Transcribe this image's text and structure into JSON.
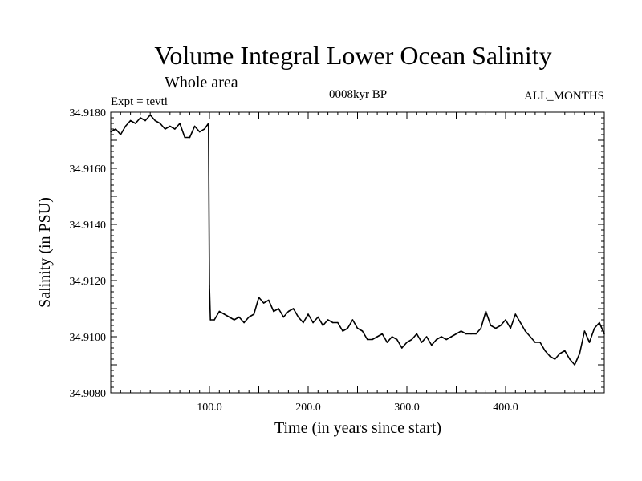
{
  "chart_data": {
    "type": "line",
    "title": "Volume Integral Lower Ocean Salinity",
    "subtitle": "Whole area",
    "annotations": {
      "experiment": "Expt = tevti",
      "period": "0008kyr BP",
      "months": "ALL_MONTHS"
    },
    "xlabel": "Time (in years since start)",
    "ylabel": "Salinity (in PSU)",
    "xlim": [
      0,
      500
    ],
    "ylim": [
      34.908,
      34.918
    ],
    "xticks_labeled": [
      "100.0",
      "200.0",
      "300.0",
      "400.0"
    ],
    "xtick_values": [
      100,
      200,
      300,
      400
    ],
    "yticks_labeled": [
      "34.9080",
      "34.9100",
      "34.9120",
      "34.9140",
      "34.9160",
      "34.9180"
    ],
    "ytick_values": [
      34.908,
      34.91,
      34.912,
      34.914,
      34.916,
      34.918
    ],
    "grid": false,
    "series": [
      {
        "x": [
          0,
          5,
          10,
          15,
          20,
          25,
          30,
          35,
          40,
          45,
          50,
          55,
          60,
          65,
          70,
          75,
          80,
          85,
          90,
          95,
          99,
          100,
          101,
          105,
          110,
          115,
          120,
          125,
          130,
          135,
          140,
          145,
          150,
          155,
          160,
          165,
          170,
          175,
          180,
          185,
          190,
          195,
          200,
          205,
          210,
          215,
          220,
          225,
          230,
          235,
          240,
          245,
          250,
          255,
          260,
          265,
          270,
          275,
          280,
          285,
          290,
          295,
          300,
          305,
          310,
          315,
          320,
          325,
          330,
          335,
          340,
          345,
          350,
          355,
          360,
          365,
          370,
          375,
          380,
          385,
          390,
          395,
          400,
          405,
          410,
          415,
          420,
          425,
          430,
          435,
          440,
          445,
          450,
          455,
          460,
          465,
          470,
          475,
          480,
          485,
          490,
          495,
          500
        ],
        "y": [
          34.9173,
          34.9174,
          34.9172,
          34.9175,
          34.9177,
          34.9176,
          34.9178,
          34.9177,
          34.9179,
          34.9177,
          34.9176,
          34.9174,
          34.9175,
          34.9174,
          34.9176,
          34.9171,
          34.9171,
          34.9175,
          34.9173,
          34.9174,
          34.9176,
          34.9118,
          34.9106,
          34.9106,
          34.9109,
          34.9108,
          34.9107,
          34.9106,
          34.9107,
          34.9105,
          34.9107,
          34.9108,
          34.9114,
          34.9112,
          34.9113,
          34.9109,
          34.911,
          34.9107,
          34.9109,
          34.911,
          34.9107,
          34.9105,
          34.9108,
          34.9105,
          34.9107,
          34.9104,
          34.9106,
          34.9105,
          34.9105,
          34.9102,
          34.9103,
          34.9106,
          34.9103,
          34.9102,
          34.9099,
          34.9099,
          34.91,
          34.9101,
          34.9098,
          34.91,
          34.9099,
          34.9096,
          34.9098,
          34.9099,
          34.9101,
          34.9098,
          34.91,
          34.9097,
          34.9099,
          34.91,
          34.9099,
          34.91,
          34.9101,
          34.9102,
          34.9101,
          34.9101,
          34.9101,
          34.9103,
          34.9109,
          34.9104,
          34.9103,
          34.9104,
          34.9106,
          34.9103,
          34.9108,
          34.9105,
          34.9102,
          34.91,
          34.9098,
          34.9098,
          34.9095,
          34.9093,
          34.9092,
          34.9094,
          34.9095,
          34.9092,
          34.909,
          34.9094,
          34.9102,
          34.9098,
          34.9103,
          34.9105,
          34.9101
        ]
      }
    ]
  }
}
